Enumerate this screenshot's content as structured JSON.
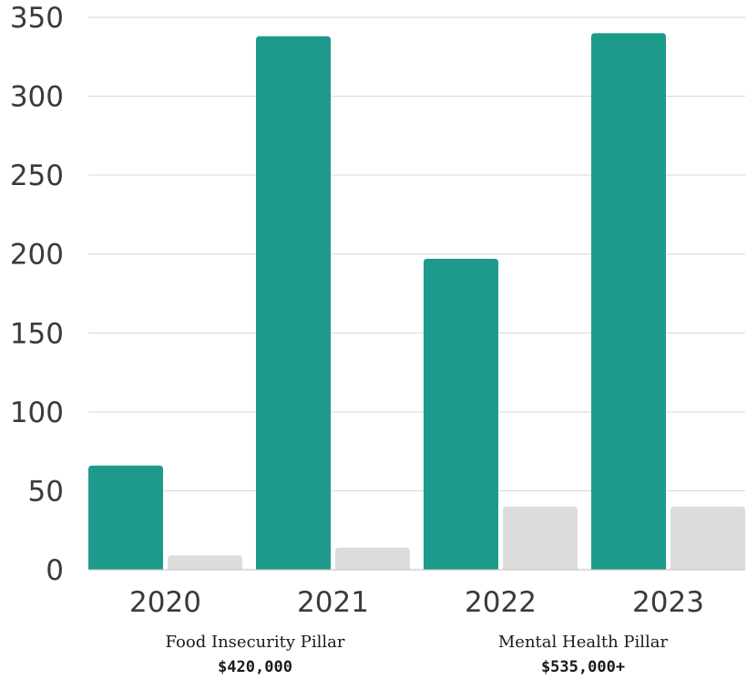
{
  "chart_data": {
    "type": "bar",
    "categories": [
      "2020",
      "2021",
      "2022",
      "2023"
    ],
    "series": [
      {
        "color": "#1e9a8c",
        "values": [
          66,
          338,
          197,
          340
        ]
      },
      {
        "color": "#dddddd",
        "values": [
          9,
          14,
          40,
          40
        ]
      }
    ],
    "yticks": [
      0,
      50,
      100,
      150,
      200,
      250,
      300,
      350
    ],
    "ylim": [
      0,
      350
    ],
    "grid": true,
    "legend": "none",
    "title": "",
    "xlabel": "",
    "ylabel": ""
  },
  "captions": [
    {
      "name": "Food Insecurity Pillar",
      "amount": "$420,000"
    },
    {
      "name": "Mental Health Pillar",
      "amount": "$535,000+"
    }
  ]
}
